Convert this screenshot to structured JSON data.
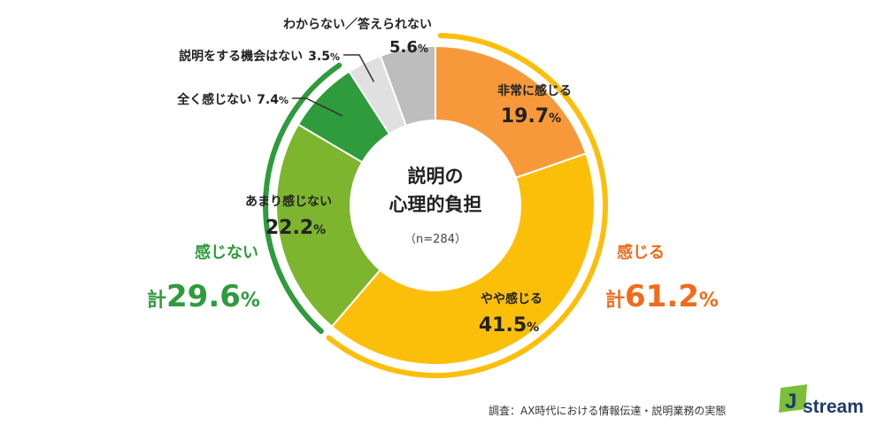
{
  "chart_data": {
    "type": "pie",
    "title": "説明の\n心理的負担",
    "title_lines": [
      "説明の",
      "心理的負担"
    ],
    "sample_size": "（n=284）",
    "unit": "%",
    "slices": [
      {
        "label": "非常に感じる",
        "value": 19.7,
        "color": "#F7993B"
      },
      {
        "label": "やや感じる",
        "value": 41.5,
        "color": "#FBBF0A"
      },
      {
        "label": "あまり感じない",
        "value": 22.2,
        "color": "#7DB52E"
      },
      {
        "label": "全く感じない",
        "value": 7.4,
        "color": "#2E9B3C"
      },
      {
        "label": "説明をする機会はない",
        "value": 3.5,
        "color": "#E0E0E0"
      },
      {
        "label": "わからない／答えられない",
        "value": 5.6,
        "color": "#BDBDBD"
      }
    ],
    "groups": [
      {
        "name": "感じる",
        "prefix": "計",
        "value": "61.2",
        "unit": "%",
        "color": "#F26A1B",
        "arc_color": "#FBBF0A"
      },
      {
        "name": "感じない",
        "prefix": "計",
        "value": "29.6",
        "unit": "%",
        "color": "#2E9B3C",
        "arc_color": "#2E9B3C"
      }
    ]
  },
  "source": "調査：AX時代における情報伝達・説明業務の実態",
  "logo": {
    "text": "stream",
    "mark": "J"
  }
}
